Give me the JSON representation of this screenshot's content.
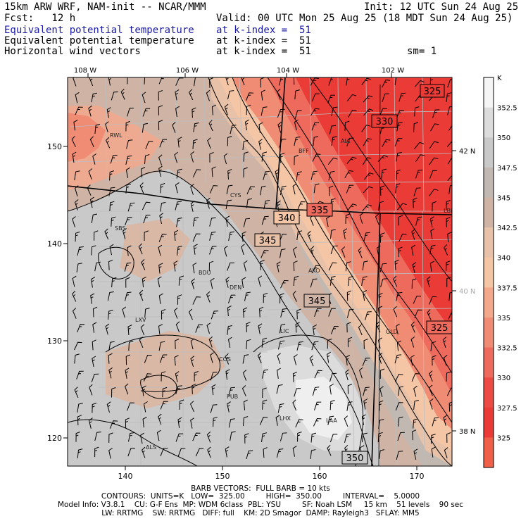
{
  "header": {
    "line1_left": "15km ARW WRF, NAM-init -- NCAR/MMM",
    "line1_right": "Init: 12 UTC Sun 24 Aug 25",
    "line2_left": "Fcst:   12 h",
    "line2_right": "Valid: 00 UTC Mon 25 Aug 25 (18 MDT Sun 24 Aug 25)",
    "fields": [
      {
        "name": "Equivalent potential temperature",
        "level": "at k-index =  51",
        "color": "#1a1aa8"
      },
      {
        "name": "Equivalent potential temperature",
        "level": "at k-index =  51",
        "color": "#000000"
      },
      {
        "name": "Horizontal wind vectors",
        "level": "at k-index =  51",
        "extra": "sm= 1",
        "color": "#000000"
      }
    ]
  },
  "map": {
    "lon_labels": [
      "108 W",
      "106 W",
      "104 W",
      "102 W"
    ],
    "lat_labels": [
      "42 N",
      "40 N",
      "38 N"
    ],
    "grid_x_ticks": [
      "140",
      "150",
      "160",
      "170"
    ],
    "grid_y_ticks": [
      "150",
      "140",
      "130",
      "120"
    ],
    "stations": [
      "RWL",
      "SBS",
      "BFF",
      "AIA",
      "CYS",
      "BDU",
      "DEN",
      "AKO",
      "LXV",
      "LIC",
      "COS",
      "PUB",
      "LHX",
      "LAA",
      "ALS",
      "GLD",
      "LBF"
    ],
    "contour_labels": [
      "325",
      "330",
      "335",
      "340",
      "345",
      "345",
      "325",
      "350"
    ]
  },
  "colorbar": {
    "unit": "K",
    "ticks": [
      "352.5",
      "350",
      "347.5",
      "345",
      "342.5",
      "340",
      "337.5",
      "335",
      "332.5",
      "330",
      "327.5",
      "325"
    ],
    "colors": [
      "#f5f5f5",
      "#dcdcdc",
      "#c9c9c9",
      "#c2b8b2",
      "#cfb4a6",
      "#e8c2a8",
      "#f5c6a6",
      "#f3a88c",
      "#f08b74",
      "#ee6a5c",
      "#ec4b44",
      "#ea3b36",
      "#f06048"
    ]
  },
  "footer": {
    "line1": "BARB VECTORS:  FULL BARB = 10 kts",
    "line2": "CONTOURS:  UNITS=K   LOW=  325.00         HIGH=  350.00         INTERVAL=    5.0000",
    "line3": "Model Info: V3.8.1    CU: G-F Ens  MP: WDM 6class  PBL: YSU         SF: Noah LSM     15 km    51 levels    90 sec",
    "line4": "LW: RRTMG    SW: RRTMG   DIFF: full    KM: 2D Smagor  DAMP: Rayleigh3   SFLAY: MM5"
  }
}
